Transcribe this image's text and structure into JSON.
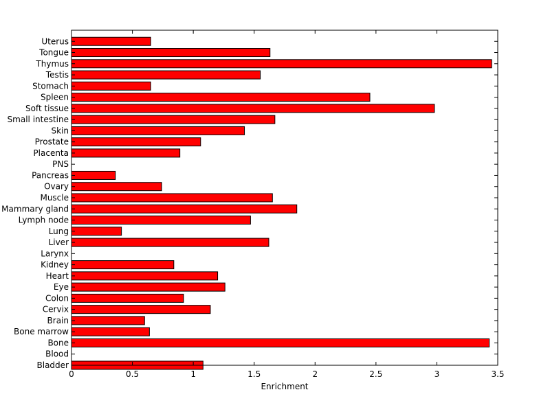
{
  "chart_data": {
    "type": "bar",
    "orientation": "horizontal",
    "xlabel": "Enrichment",
    "ylabel": "",
    "title": "",
    "xlim": [
      0,
      3.5
    ],
    "xticks": [
      "0",
      "0.5",
      "1",
      "1.5",
      "2",
      "2.5",
      "3",
      "3.5"
    ],
    "grid": false,
    "bar_color": "#ff0000",
    "edge_color": "#000000",
    "categories": [
      "Uterus",
      "Tongue",
      "Thymus",
      "Testis",
      "Stomach",
      "Spleen",
      "Soft tissue",
      "Small intestine",
      "Skin",
      "Prostate",
      "Placenta",
      "PNS",
      "Pancreas",
      "Ovary",
      "Muscle",
      "Mammary gland",
      "Lymph node",
      "Lung",
      "Liver",
      "Larynx",
      "Kidney",
      "Heart",
      "Eye",
      "Colon",
      "Cervix",
      "Brain",
      "Bone marrow",
      "Bone",
      "Blood",
      "Bladder"
    ],
    "values": [
      0.65,
      1.63,
      3.45,
      1.55,
      0.65,
      2.45,
      2.98,
      1.67,
      1.42,
      1.06,
      0.89,
      0,
      0.36,
      0.74,
      1.65,
      1.85,
      1.47,
      0.41,
      1.62,
      0,
      0.84,
      1.2,
      1.26,
      0.92,
      1.14,
      0.6,
      0.64,
      3.43,
      0,
      1.08
    ]
  }
}
